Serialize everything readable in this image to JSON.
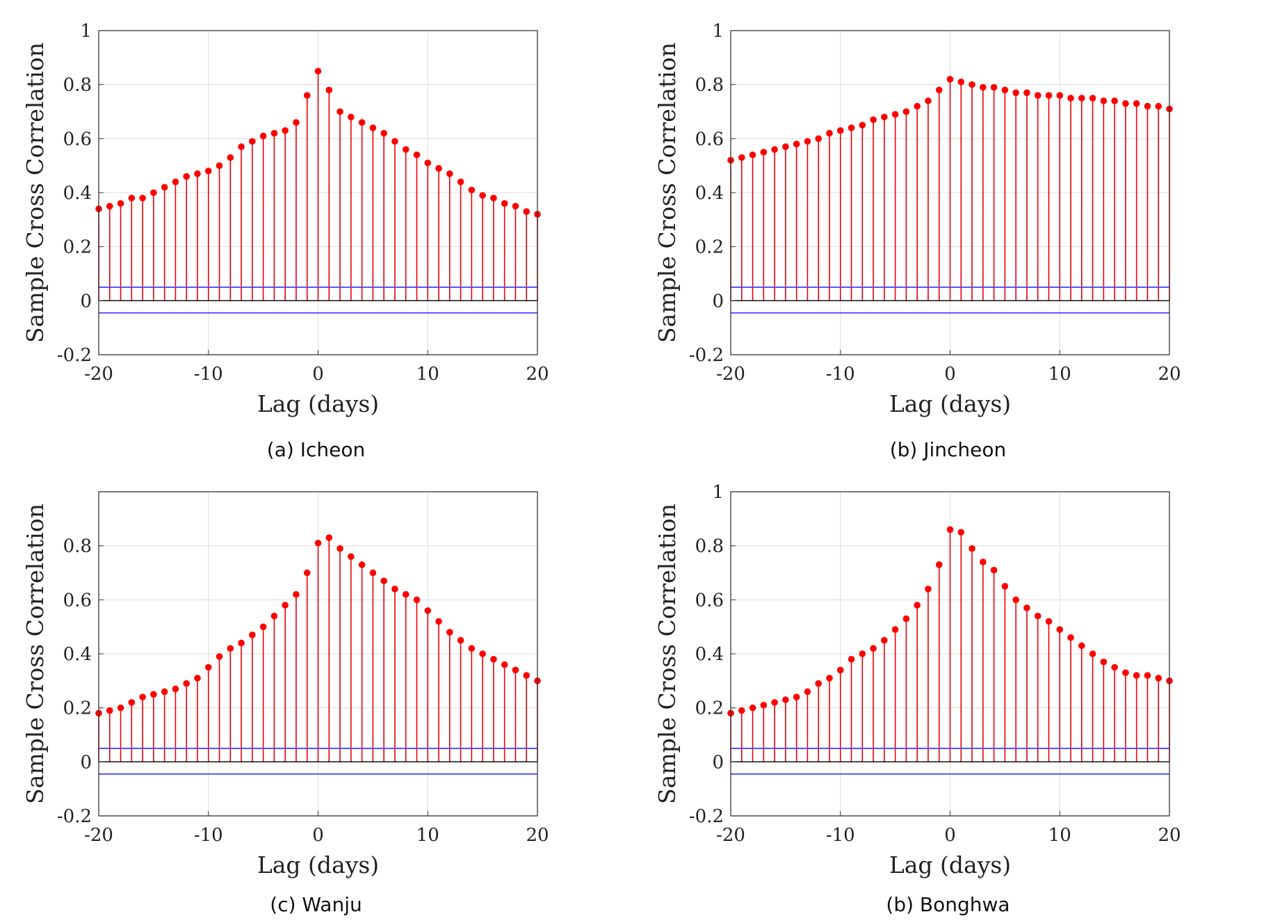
{
  "chart_data": [
    {
      "type": "stem",
      "caption": "(a) Icheon",
      "title": "",
      "xlabel": "Lag (days)",
      "ylabel": "Sample Cross Correlation",
      "xlim": [
        -20,
        20
      ],
      "ylim": [
        -0.2,
        1
      ],
      "xticks": [
        "-20",
        "-10",
        "0",
        "10",
        "20"
      ],
      "yticks": [
        "-0.2",
        "0",
        "0.2",
        "0.4",
        "0.6",
        "0.8",
        "1"
      ],
      "grid": true,
      "confidence_bounds": [
        0.05,
        -0.045
      ],
      "x": [
        -20,
        -19,
        -18,
        -17,
        -16,
        -15,
        -14,
        -13,
        -12,
        -11,
        -10,
        -9,
        -8,
        -7,
        -6,
        -5,
        -4,
        -3,
        -2,
        -1,
        0,
        1,
        2,
        3,
        4,
        5,
        6,
        7,
        8,
        9,
        10,
        11,
        12,
        13,
        14,
        15,
        16,
        17,
        18,
        19,
        20
      ],
      "values": [
        0.34,
        0.35,
        0.36,
        0.38,
        0.38,
        0.4,
        0.42,
        0.44,
        0.46,
        0.47,
        0.48,
        0.5,
        0.53,
        0.57,
        0.59,
        0.61,
        0.62,
        0.63,
        0.66,
        0.76,
        0.85,
        0.78,
        0.7,
        0.68,
        0.66,
        0.64,
        0.62,
        0.59,
        0.56,
        0.54,
        0.51,
        0.49,
        0.47,
        0.44,
        0.41,
        0.39,
        0.38,
        0.36,
        0.35,
        0.33,
        0.32
      ]
    },
    {
      "type": "stem",
      "caption": "(b) Jincheon",
      "title": "",
      "xlabel": "Lag (days)",
      "ylabel": "Sample Cross Correlation",
      "xlim": [
        -20,
        20
      ],
      "ylim": [
        -0.2,
        1
      ],
      "xticks": [
        "-20",
        "-10",
        "0",
        "10",
        "20"
      ],
      "yticks": [
        "-0.2",
        "0",
        "0.2",
        "0.4",
        "0.6",
        "0.8",
        "1"
      ],
      "grid": true,
      "confidence_bounds": [
        0.05,
        -0.045
      ],
      "x": [
        -20,
        -19,
        -18,
        -17,
        -16,
        -15,
        -14,
        -13,
        -12,
        -11,
        -10,
        -9,
        -8,
        -7,
        -6,
        -5,
        -4,
        -3,
        -2,
        -1,
        0,
        1,
        2,
        3,
        4,
        5,
        6,
        7,
        8,
        9,
        10,
        11,
        12,
        13,
        14,
        15,
        16,
        17,
        18,
        19,
        20
      ],
      "values": [
        0.52,
        0.53,
        0.54,
        0.55,
        0.56,
        0.57,
        0.58,
        0.59,
        0.6,
        0.62,
        0.63,
        0.64,
        0.65,
        0.67,
        0.68,
        0.69,
        0.7,
        0.72,
        0.74,
        0.78,
        0.82,
        0.81,
        0.8,
        0.79,
        0.79,
        0.78,
        0.77,
        0.77,
        0.76,
        0.76,
        0.76,
        0.75,
        0.75,
        0.75,
        0.74,
        0.74,
        0.73,
        0.73,
        0.72,
        0.72,
        0.71
      ]
    },
    {
      "type": "stem",
      "caption": "(c) Wanju",
      "title": "",
      "xlabel": "Lag (days)",
      "ylabel": "Sample Cross Correlation",
      "xlim": [
        -20,
        20
      ],
      "ylim": [
        -0.2,
        1
      ],
      "xticks": [
        "-20",
        "-10",
        "0",
        "10",
        "20"
      ],
      "yticks": [
        "-0.2",
        "0",
        "0.2",
        "0.4",
        "0.6",
        "0.8"
      ],
      "grid": true,
      "confidence_bounds": [
        0.05,
        -0.045
      ],
      "x": [
        -20,
        -19,
        -18,
        -17,
        -16,
        -15,
        -14,
        -13,
        -12,
        -11,
        -10,
        -9,
        -8,
        -7,
        -6,
        -5,
        -4,
        -3,
        -2,
        -1,
        0,
        1,
        2,
        3,
        4,
        5,
        6,
        7,
        8,
        9,
        10,
        11,
        12,
        13,
        14,
        15,
        16,
        17,
        18,
        19,
        20
      ],
      "values": [
        0.18,
        0.19,
        0.2,
        0.22,
        0.24,
        0.25,
        0.26,
        0.27,
        0.29,
        0.31,
        0.35,
        0.39,
        0.42,
        0.44,
        0.47,
        0.5,
        0.54,
        0.58,
        0.62,
        0.7,
        0.81,
        0.83,
        0.79,
        0.76,
        0.73,
        0.7,
        0.67,
        0.64,
        0.62,
        0.6,
        0.56,
        0.52,
        0.48,
        0.45,
        0.42,
        0.4,
        0.38,
        0.36,
        0.34,
        0.32,
        0.3
      ]
    },
    {
      "type": "stem",
      "caption": "(b) Bonghwa",
      "title": "",
      "xlabel": "Lag (days)",
      "ylabel": "Sample Cross Correlation",
      "xlim": [
        -20,
        20
      ],
      "ylim": [
        -0.2,
        1
      ],
      "xticks": [
        "-20",
        "-10",
        "0",
        "10",
        "20"
      ],
      "yticks": [
        "-0.2",
        "0",
        "0.2",
        "0.4",
        "0.6",
        "0.8",
        "1"
      ],
      "grid": true,
      "confidence_bounds": [
        0.05,
        -0.045
      ],
      "x": [
        -20,
        -19,
        -18,
        -17,
        -16,
        -15,
        -14,
        -13,
        -12,
        -11,
        -10,
        -9,
        -8,
        -7,
        -6,
        -5,
        -4,
        -3,
        -2,
        -1,
        0,
        1,
        2,
        3,
        4,
        5,
        6,
        7,
        8,
        9,
        10,
        11,
        12,
        13,
        14,
        15,
        16,
        17,
        18,
        19,
        20
      ],
      "values": [
        0.18,
        0.19,
        0.2,
        0.21,
        0.22,
        0.23,
        0.24,
        0.26,
        0.29,
        0.31,
        0.34,
        0.38,
        0.4,
        0.42,
        0.45,
        0.49,
        0.53,
        0.58,
        0.64,
        0.73,
        0.86,
        0.85,
        0.79,
        0.74,
        0.71,
        0.65,
        0.6,
        0.57,
        0.54,
        0.52,
        0.49,
        0.46,
        0.43,
        0.4,
        0.37,
        0.35,
        0.33,
        0.32,
        0.32,
        0.31,
        0.3
      ]
    }
  ],
  "colors": {
    "stem": "#e8000b",
    "marker": "#ff0000",
    "bound": "#4a4aff",
    "zero_line": "#000000",
    "grid": "#dddddd",
    "axis": "#333333"
  }
}
